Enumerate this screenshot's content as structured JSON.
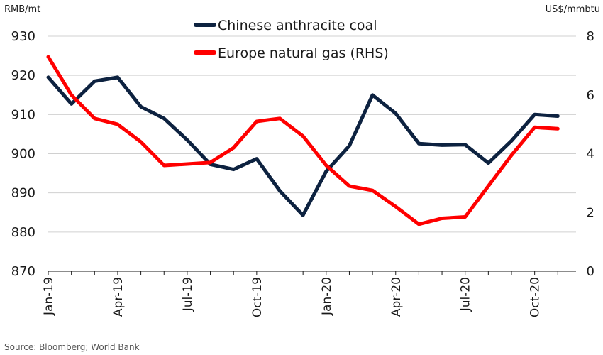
{
  "chart_data": {
    "type": "line",
    "left_axis_unit": "RMB/mt",
    "right_axis_unit": "US$/mmbtu",
    "y_left": {
      "min": 870,
      "max": 930,
      "ticks": [
        "930",
        "920",
        "910",
        "900",
        "890",
        "880",
        "870"
      ]
    },
    "y_right": {
      "min": 0,
      "max": 8,
      "ticks": [
        "8",
        "6",
        "4",
        "2",
        "0"
      ]
    },
    "x": [
      "Jan-19",
      "Feb-19",
      "Mar-19",
      "Apr-19",
      "May-19",
      "Jun-19",
      "Jul-19",
      "Aug-19",
      "Sep-19",
      "Oct-19",
      "Nov-19",
      "Dec-19",
      "Jan-20",
      "Feb-20",
      "Mar-20",
      "Apr-20",
      "May-20",
      "Jun-20",
      "Jul-20",
      "Aug-20",
      "Sep-20",
      "Oct-20",
      "Nov-20"
    ],
    "x_tick_labels": [
      "Jan-19",
      "Apr-19",
      "Jul-19",
      "Oct-19",
      "Jan-20",
      "Apr-20",
      "Jul-20",
      "Oct-20"
    ],
    "grid": "horizontal",
    "legend_position": "top-center",
    "series": [
      {
        "name": "Chinese anthracite coal",
        "axis": "left",
        "color": "#0d2240",
        "values": [
          919.5,
          912.7,
          918.5,
          919.5,
          912.0,
          909.0,
          903.5,
          897.3,
          896.0,
          898.7,
          890.5,
          884.3,
          895.5,
          902.0,
          915.0,
          910.3,
          902.6,
          902.2,
          902.3,
          897.6,
          903.3,
          910.0,
          909.6
        ]
      },
      {
        "name": "Europe natural gas (RHS)",
        "axis": "right",
        "color": "#ff0000",
        "values": [
          7.3,
          6.0,
          5.2,
          5.0,
          4.4,
          3.6,
          3.65,
          3.7,
          4.2,
          5.1,
          5.2,
          4.6,
          3.6,
          2.9,
          2.75,
          2.2,
          1.6,
          1.8,
          1.85,
          2.9,
          3.95,
          4.9,
          4.85
        ]
      }
    ]
  },
  "source": "Source: Bloomberg; World Bank"
}
